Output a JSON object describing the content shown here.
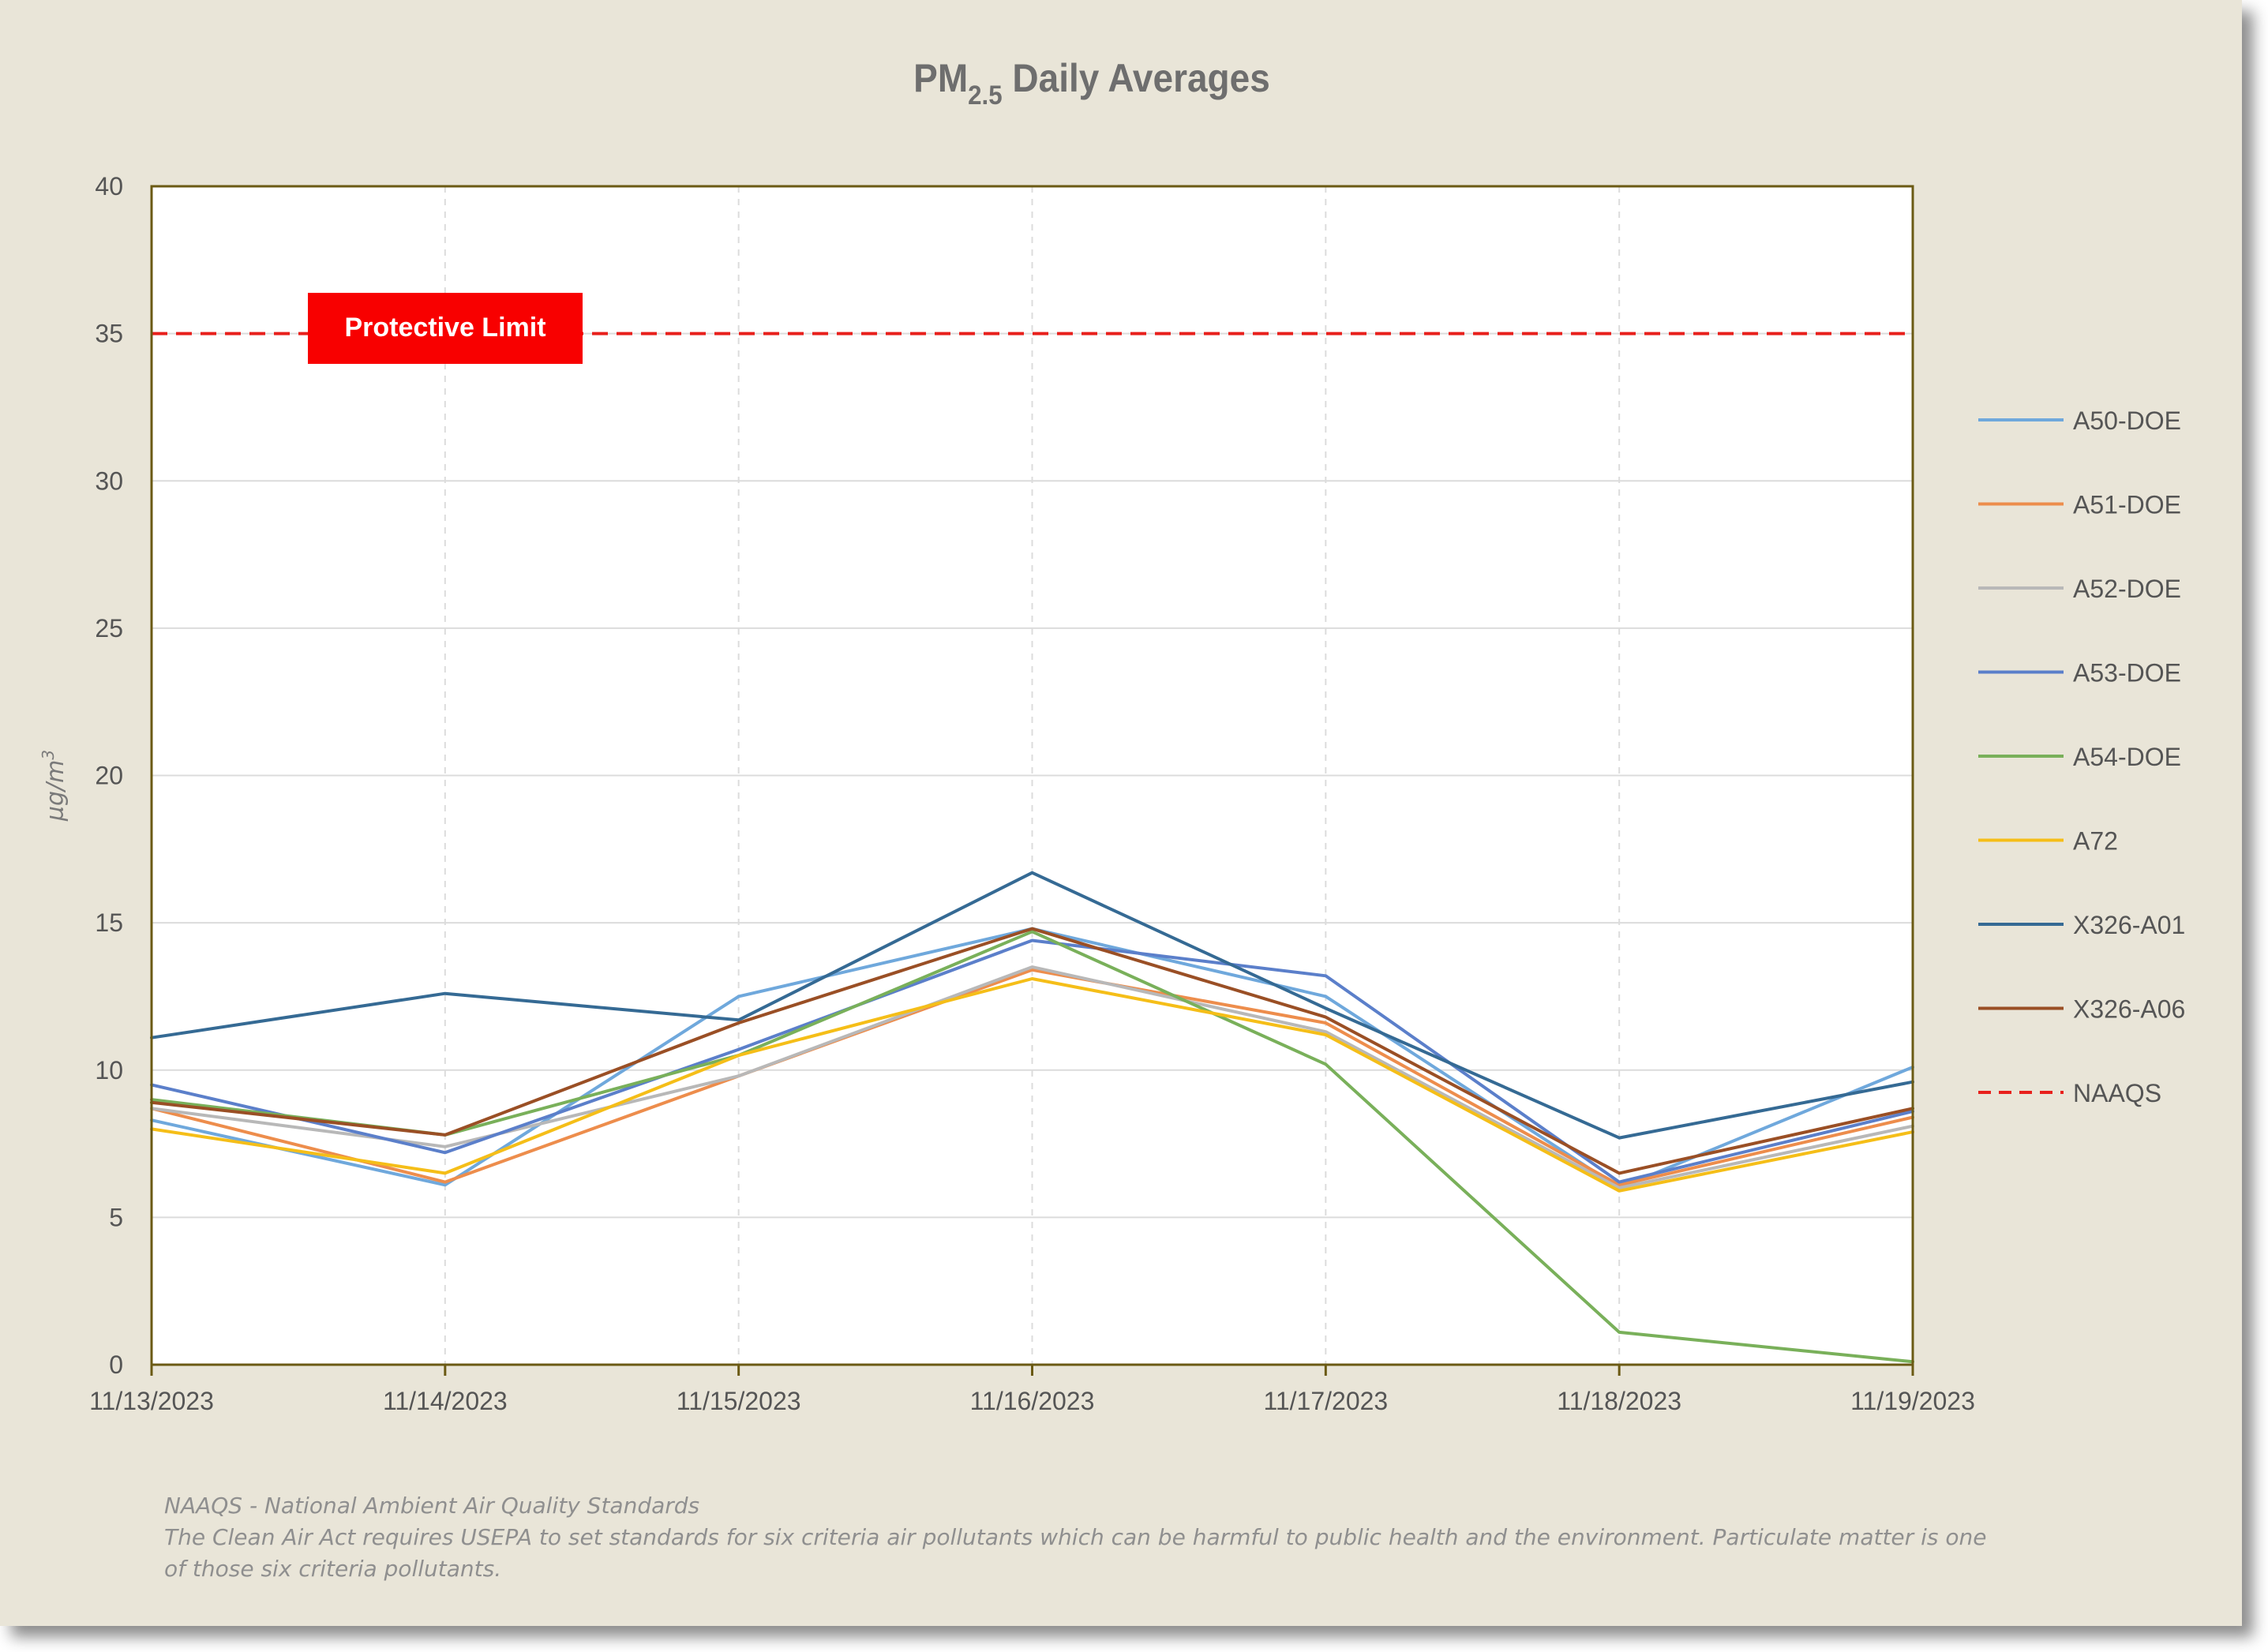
{
  "chart_data": {
    "type": "line",
    "title": {
      "main": "PM",
      "sub": "2.5",
      "rest": " Daily Averages"
    },
    "ylabel": {
      "main": "µg/m",
      "sup": "3"
    },
    "xlabel": "",
    "categories": [
      "11/13/2023",
      "11/14/2023",
      "11/15/2023",
      "11/16/2023",
      "11/17/2023",
      "11/18/2023",
      "11/19/2023"
    ],
    "ylim": [
      0,
      40
    ],
    "yticks": [
      "0",
      "5",
      "10",
      "15",
      "20",
      "25",
      "30",
      "35",
      "40"
    ],
    "grid": "horizontal solid, vertical dashed",
    "legend_position": "right",
    "series": [
      {
        "name": "A50-DOE",
        "color": "#6fa8dc",
        "values": [
          8.3,
          6.1,
          12.5,
          14.8,
          12.5,
          6.0,
          10.1
        ]
      },
      {
        "name": "A51-DOE",
        "color": "#ed8d4c",
        "values": [
          8.7,
          6.2,
          9.8,
          13.4,
          11.6,
          6.1,
          8.4
        ]
      },
      {
        "name": "A52-DOE",
        "color": "#b8b8b8",
        "values": [
          8.7,
          7.4,
          9.8,
          13.5,
          11.3,
          6.0,
          8.1
        ]
      },
      {
        "name": "A53-DOE",
        "color": "#5b7fca",
        "values": [
          9.5,
          7.2,
          10.7,
          14.4,
          13.2,
          6.2,
          8.6
        ]
      },
      {
        "name": "A54-DOE",
        "color": "#79b05a",
        "values": [
          9.0,
          7.8,
          10.5,
          14.7,
          10.2,
          1.1,
          0.1
        ]
      },
      {
        "name": "A72",
        "color": "#f5be18",
        "values": [
          8.0,
          6.5,
          10.5,
          13.1,
          11.2,
          5.9,
          7.9
        ]
      },
      {
        "name": "X326-A01",
        "color": "#356a94",
        "values": [
          11.1,
          12.6,
          11.7,
          16.7,
          12.1,
          7.7,
          9.6
        ]
      },
      {
        "name": "X326-A06",
        "color": "#9a4f25",
        "values": [
          8.9,
          7.8,
          11.6,
          14.8,
          11.8,
          6.5,
          8.7
        ]
      }
    ],
    "reference_line": {
      "name": "NAAQS",
      "value": 35,
      "color": "#e8201c",
      "style": "dashed"
    },
    "annotation": "Protective Limit"
  },
  "footnote": {
    "line1": "NAAQS - National Ambient Air Quality Standards",
    "line2": "The Clean Air Act requires USEPA to set standards for six criteria air pollutants which can be harmful to public health and the environment.  Particulate matter is one",
    "line3": "of those six criteria pollutants."
  }
}
